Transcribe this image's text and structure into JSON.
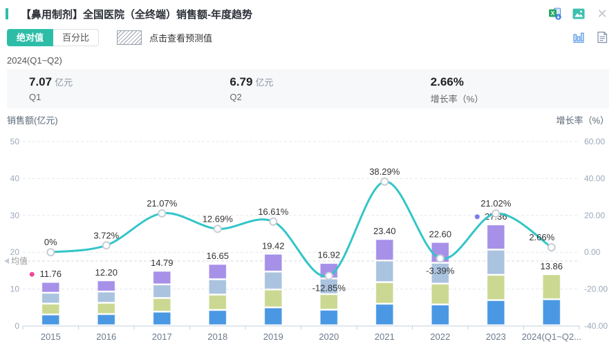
{
  "header": {
    "title": "【鼻用制剂】全国医院（全终端）销售额-年度趋势",
    "icons": {
      "top_row": [
        "excel-export",
        "image-export",
        "close"
      ],
      "toolbar_row": [
        "bar-chart-view",
        "report-view"
      ]
    }
  },
  "toolbar": {
    "tabs": [
      {
        "label": "绝对值",
        "active": true
      },
      {
        "label": "百分比",
        "active": false
      }
    ],
    "forecast_hint": "点击查看预测值"
  },
  "period": {
    "label": "2024(Q1~Q2)",
    "stats": [
      {
        "value": "7.07",
        "unit": "亿元",
        "label": "Q1"
      },
      {
        "value": "6.79",
        "unit": "亿元",
        "label": "Q2"
      },
      {
        "value": "2.66%",
        "unit": "",
        "label": "增长率（%）"
      }
    ]
  },
  "chart_data": {
    "type": "bar+line",
    "title": "销售额-年度趋势",
    "categories": [
      "2015",
      "2016",
      "2017",
      "2018",
      "2019",
      "2020",
      "2021",
      "2022",
      "2023",
      "2024(Q1~Q2..."
    ],
    "bars": {
      "name": "销售额",
      "unit": "亿元",
      "values": [
        11.76,
        12.2,
        14.79,
        16.65,
        19.42,
        16.92,
        23.4,
        22.6,
        27.36,
        13.86
      ],
      "labels": [
        "11.76",
        "12.20",
        "14.79",
        "16.65",
        "19.42",
        "16.92",
        "23.40",
        "22.60",
        "27.36",
        "13.86"
      ],
      "segments_count": [
        4,
        4,
        4,
        4,
        4,
        4,
        4,
        4,
        4,
        2
      ],
      "segment_colors": [
        "#4a98e3",
        "#cad892",
        "#aac3df",
        "#a690e8"
      ],
      "last_year_segments": [
        7.07,
        6.79
      ]
    },
    "line": {
      "name": "增长率",
      "unit": "%",
      "values": [
        0,
        3.72,
        21.07,
        12.69,
        16.61,
        -12.85,
        38.29,
        -3.39,
        21.02,
        2.66
      ],
      "labels": [
        "0%",
        "3.72%",
        "21.07%",
        "12.69%",
        "16.61%",
        "-12.85%",
        "38.29%",
        "-3.39%",
        "21.02%",
        "2.66%"
      ],
      "color": "#32c5c8"
    },
    "left_axis": {
      "title": "销售额(亿元)",
      "ticks": [
        0,
        10,
        20,
        30,
        40,
        50
      ],
      "range": [
        0,
        50
      ]
    },
    "right_axis": {
      "title": "增长率（%）",
      "ticks": [
        "-40.00",
        "-20.00",
        "0.00",
        "20.00",
        "40.00",
        "60.00"
      ],
      "tick_values": [
        -40,
        -20,
        0,
        20,
        40,
        60
      ],
      "range": [
        -40,
        60
      ]
    },
    "mean": {
      "label": "均值",
      "value": 17.6
    },
    "annotations": [
      {
        "index": 0,
        "color": "#f0479d"
      },
      {
        "index": 8,
        "color": "#7a7af0"
      }
    ],
    "grid": true,
    "legend_position": "none",
    "accent_color": "#2dbda7"
  }
}
